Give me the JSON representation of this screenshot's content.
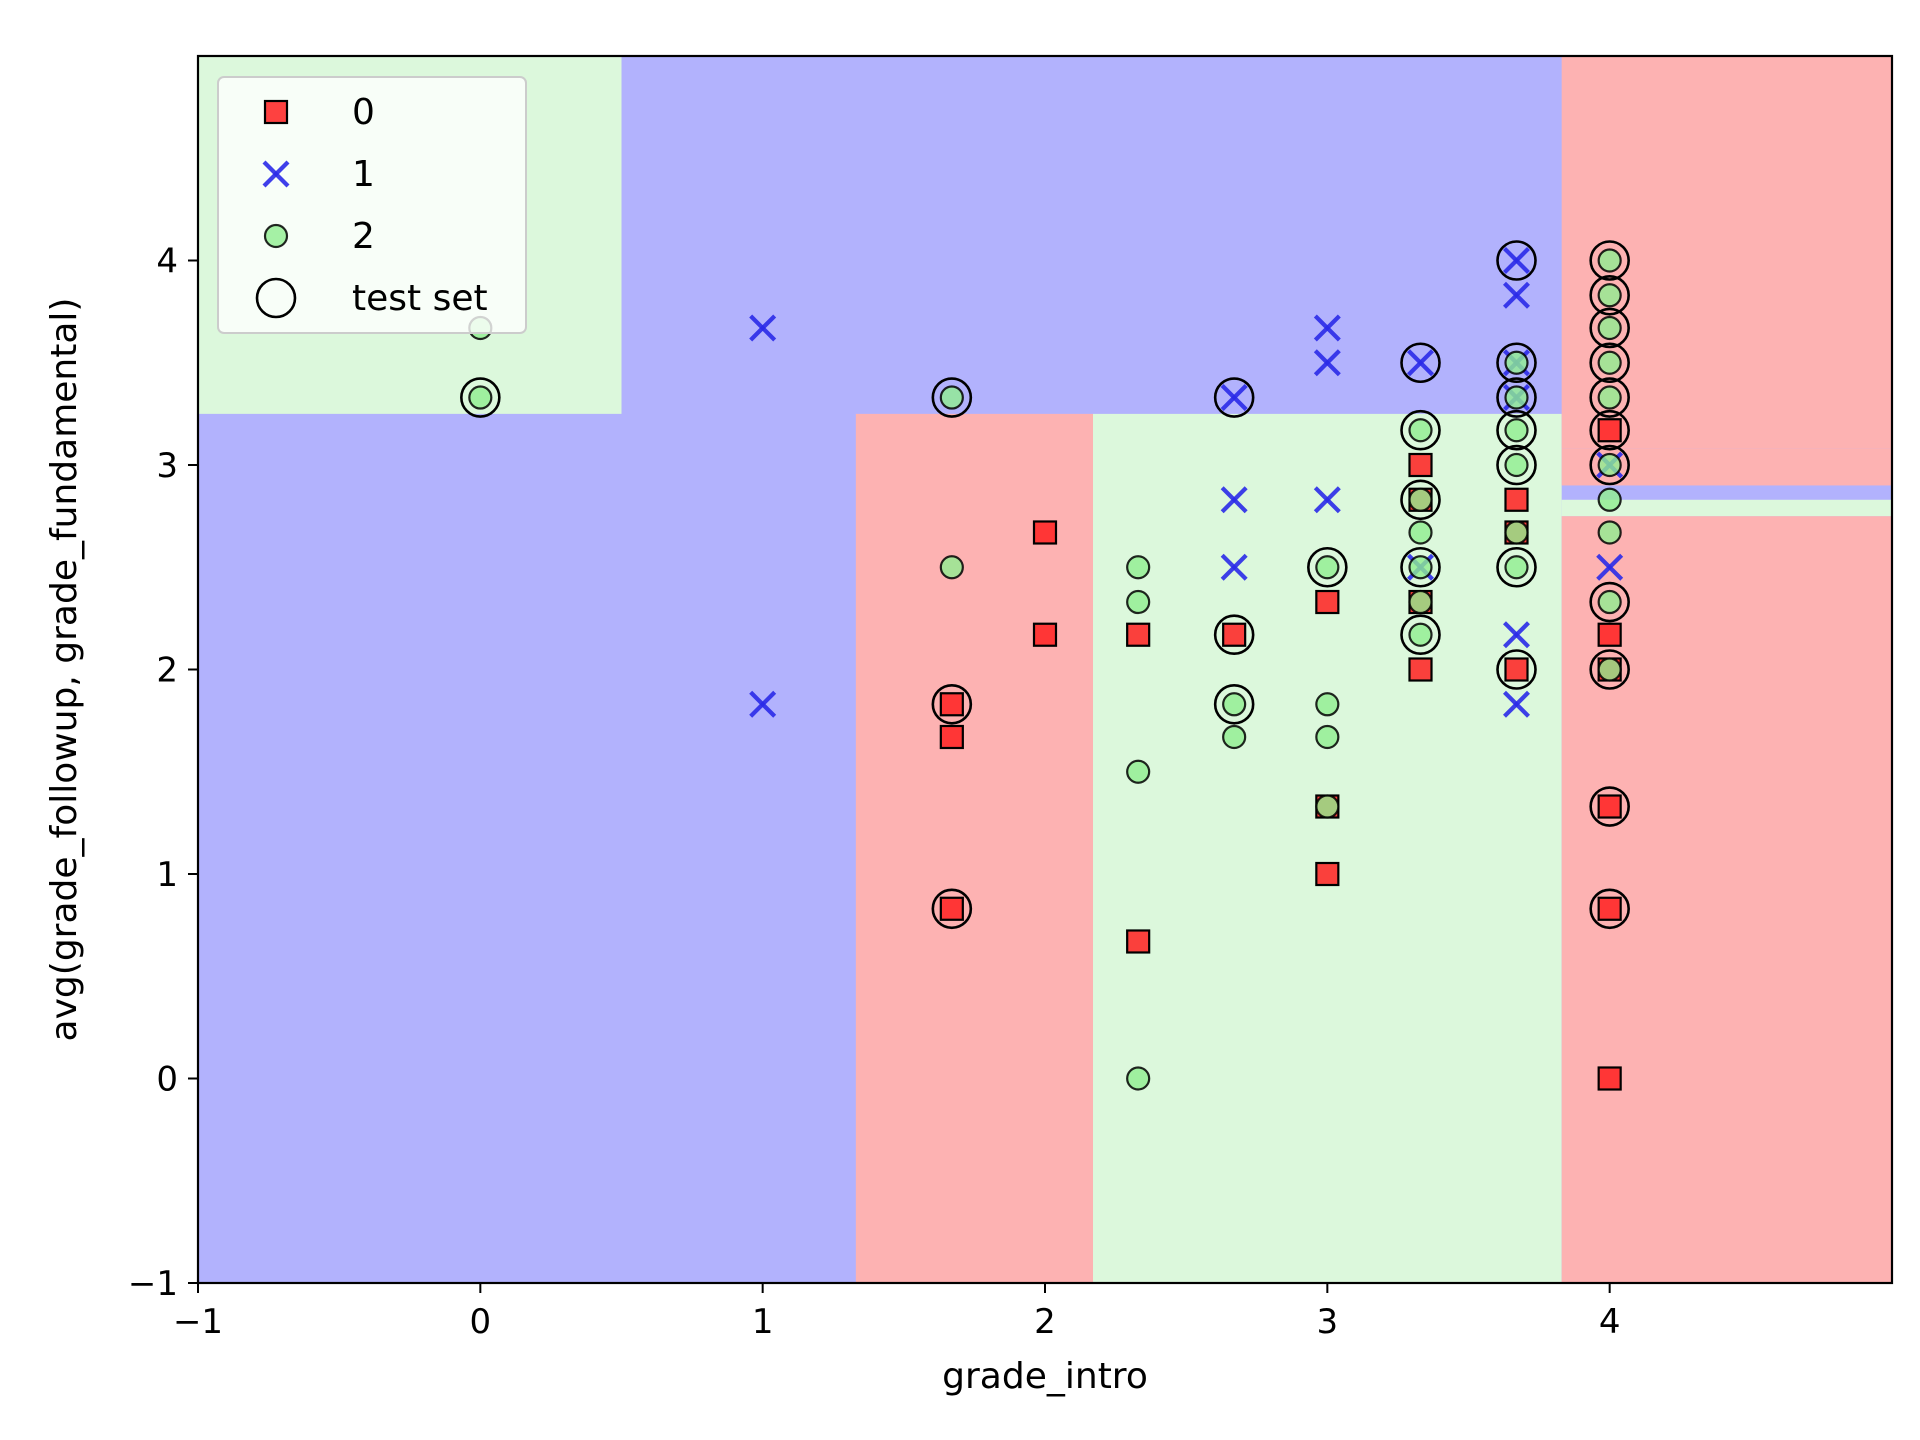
{
  "chart_data": {
    "type": "scatter",
    "title": "",
    "xlabel": "grade_intro",
    "ylabel": "avg(grade_followup, grade_fundamental)",
    "xlim": [
      -1,
      5
    ],
    "ylim": [
      -1,
      5
    ],
    "xticks": [
      -1,
      0,
      1,
      2,
      3,
      4
    ],
    "yticks": [
      -1,
      0,
      1,
      2,
      3,
      4
    ],
    "xtick_labels": [
      "−1",
      "0",
      "1",
      "2",
      "3",
      "4"
    ],
    "ytick_labels": [
      "−1",
      "0",
      "1",
      "2",
      "3",
      "4"
    ],
    "grid": false,
    "legend_position": "top-left",
    "classes": [
      {
        "label": "0",
        "marker": "square",
        "color": "#ff2020",
        "region_color": "#fdb2b2"
      },
      {
        "label": "1",
        "marker": "x",
        "color": "#2a2ae8",
        "region_color": "#b2b2fd"
      },
      {
        "label": "2",
        "marker": "circle",
        "color": "#90ee90",
        "region_color": "#dcf8dc"
      }
    ],
    "test_set_label": "test set",
    "decision_regions": [
      {
        "class": 1,
        "x": [
          -1,
          5
        ],
        "y": [
          -1,
          5
        ]
      },
      {
        "class": 2,
        "x": [
          -1,
          0.5
        ],
        "y": [
          3.25,
          5
        ]
      },
      {
        "class": 0,
        "x": [
          1.33,
          2.17
        ],
        "y": [
          -1,
          3.25
        ]
      },
      {
        "class": 2,
        "x": [
          2.17,
          3.83
        ],
        "y": [
          -1,
          3.25
        ]
      },
      {
        "class": 0,
        "x": [
          3.83,
          5
        ],
        "y": [
          -1,
          2.75
        ]
      },
      {
        "class": 2,
        "x": [
          3.83,
          5
        ],
        "y": [
          2.75,
          2.83
        ]
      },
      {
        "class": 0,
        "x": [
          3.83,
          5
        ],
        "y": [
          2.9,
          3.08
        ]
      },
      {
        "class": 0,
        "x": [
          3.83,
          5
        ],
        "y": [
          3.08,
          5
        ]
      }
    ],
    "series": [
      {
        "name": "0",
        "marker": "square",
        "points": [
          [
            1.67,
            1.83
          ],
          [
            1.67,
            1.67
          ],
          [
            1.67,
            0.83
          ],
          [
            2.0,
            2.67
          ],
          [
            2.0,
            2.17
          ],
          [
            2.33,
            2.17
          ],
          [
            2.33,
            0.67
          ],
          [
            2.67,
            2.17
          ],
          [
            3.0,
            2.33
          ],
          [
            3.0,
            1.33
          ],
          [
            3.0,
            1.0
          ],
          [
            3.33,
            3.0
          ],
          [
            3.33,
            2.0
          ],
          [
            3.33,
            2.83
          ],
          [
            3.33,
            2.33
          ],
          [
            3.67,
            2.83
          ],
          [
            3.67,
            2.67
          ],
          [
            3.67,
            2.0
          ],
          [
            4.0,
            3.17
          ],
          [
            4.0,
            2.17
          ],
          [
            4.0,
            2.0
          ],
          [
            4.0,
            1.33
          ],
          [
            4.0,
            0.83
          ],
          [
            4.0,
            0.0
          ]
        ]
      },
      {
        "name": "1",
        "marker": "x",
        "points": [
          [
            1.0,
            3.67
          ],
          [
            1.0,
            1.83
          ],
          [
            2.67,
            3.33
          ],
          [
            2.67,
            2.83
          ],
          [
            2.67,
            2.5
          ],
          [
            3.0,
            3.67
          ],
          [
            3.0,
            3.5
          ],
          [
            3.0,
            2.83
          ],
          [
            3.33,
            3.5
          ],
          [
            3.33,
            2.5
          ],
          [
            3.67,
            4.0
          ],
          [
            3.67,
            3.83
          ],
          [
            3.67,
            3.5
          ],
          [
            3.67,
            3.33
          ],
          [
            3.67,
            2.17
          ],
          [
            3.67,
            1.83
          ],
          [
            4.0,
            3.0
          ],
          [
            4.0,
            2.5
          ]
        ]
      },
      {
        "name": "2",
        "marker": "circle",
        "points": [
          [
            0.0,
            3.67
          ],
          [
            0.0,
            3.33
          ],
          [
            1.67,
            3.33
          ],
          [
            1.67,
            2.5
          ],
          [
            2.33,
            2.5
          ],
          [
            2.33,
            2.33
          ],
          [
            2.33,
            1.5
          ],
          [
            2.33,
            0.0
          ],
          [
            2.67,
            1.83
          ],
          [
            2.67,
            1.67
          ],
          [
            3.0,
            2.5
          ],
          [
            3.0,
            1.83
          ],
          [
            3.0,
            1.67
          ],
          [
            3.0,
            1.33
          ],
          [
            3.33,
            3.17
          ],
          [
            3.33,
            2.83
          ],
          [
            3.33,
            2.67
          ],
          [
            3.33,
            2.5
          ],
          [
            3.33,
            2.33
          ],
          [
            3.33,
            2.17
          ],
          [
            3.67,
            3.5
          ],
          [
            3.67,
            3.33
          ],
          [
            3.67,
            3.17
          ],
          [
            3.67,
            3.0
          ],
          [
            3.67,
            2.67
          ],
          [
            3.67,
            2.5
          ],
          [
            4.0,
            4.0
          ],
          [
            4.0,
            3.83
          ],
          [
            4.0,
            3.67
          ],
          [
            4.0,
            3.5
          ],
          [
            4.0,
            3.33
          ],
          [
            4.0,
            3.0
          ],
          [
            4.0,
            2.83
          ],
          [
            4.0,
            2.67
          ],
          [
            4.0,
            2.33
          ],
          [
            4.0,
            2.0
          ]
        ]
      }
    ],
    "test_set_points": [
      [
        0.0,
        3.33
      ],
      [
        1.67,
        3.33
      ],
      [
        1.67,
        1.83
      ],
      [
        1.67,
        0.83
      ],
      [
        2.67,
        3.33
      ],
      [
        2.67,
        2.17
      ],
      [
        2.67,
        1.83
      ],
      [
        3.0,
        2.5
      ],
      [
        3.33,
        3.5
      ],
      [
        3.33,
        3.17
      ],
      [
        3.33,
        2.83
      ],
      [
        3.33,
        2.5
      ],
      [
        3.33,
        2.17
      ],
      [
        3.67,
        4.0
      ],
      [
        3.67,
        3.5
      ],
      [
        3.67,
        3.33
      ],
      [
        3.67,
        3.17
      ],
      [
        3.67,
        3.0
      ],
      [
        3.67,
        2.5
      ],
      [
        3.67,
        2.0
      ],
      [
        4.0,
        4.0
      ],
      [
        4.0,
        3.83
      ],
      [
        4.0,
        3.67
      ],
      [
        4.0,
        3.5
      ],
      [
        4.0,
        3.33
      ],
      [
        4.0,
        3.17
      ],
      [
        4.0,
        3.0
      ],
      [
        4.0,
        2.33
      ],
      [
        4.0,
        2.0
      ],
      [
        4.0,
        1.33
      ],
      [
        4.0,
        0.83
      ]
    ]
  }
}
